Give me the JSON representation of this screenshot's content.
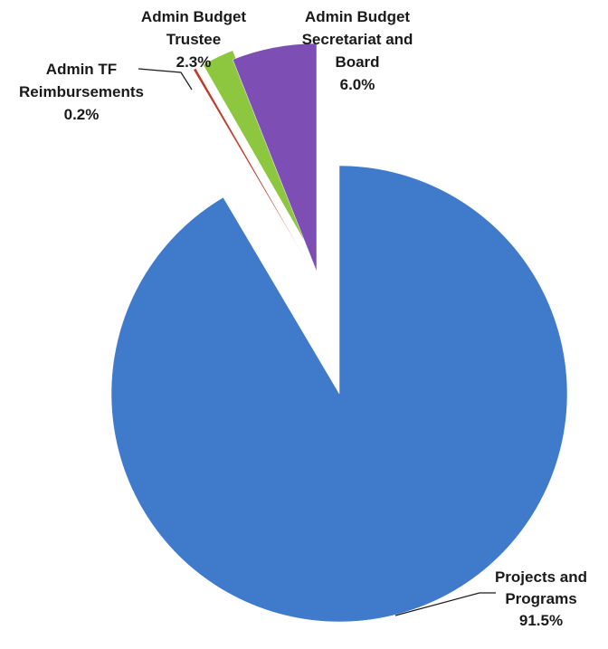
{
  "chart_data": {
    "type": "pie",
    "exploded": true,
    "start_angle_deg": 0,
    "direction": "clockwise",
    "slices": [
      {
        "label_lines": [
          "Projects and",
          "Programs"
        ],
        "value_label": "91.5%",
        "value": 91.5,
        "color": "#3f7acb"
      },
      {
        "label_lines": [
          "Admin TF",
          "Reimbursements"
        ],
        "value_label": "0.2%",
        "value": 0.2,
        "color": "#c0392b"
      },
      {
        "label_lines": [
          "Admin Budget",
          "Trustee"
        ],
        "value_label": "2.3%",
        "value": 2.3,
        "color": "#8dc63f"
      },
      {
        "label_lines": [
          "Admin Budget",
          "Secretariat and",
          "Board"
        ],
        "value_label": "6.0%",
        "value": 6.0,
        "color": "#7d4fb5"
      }
    ]
  }
}
